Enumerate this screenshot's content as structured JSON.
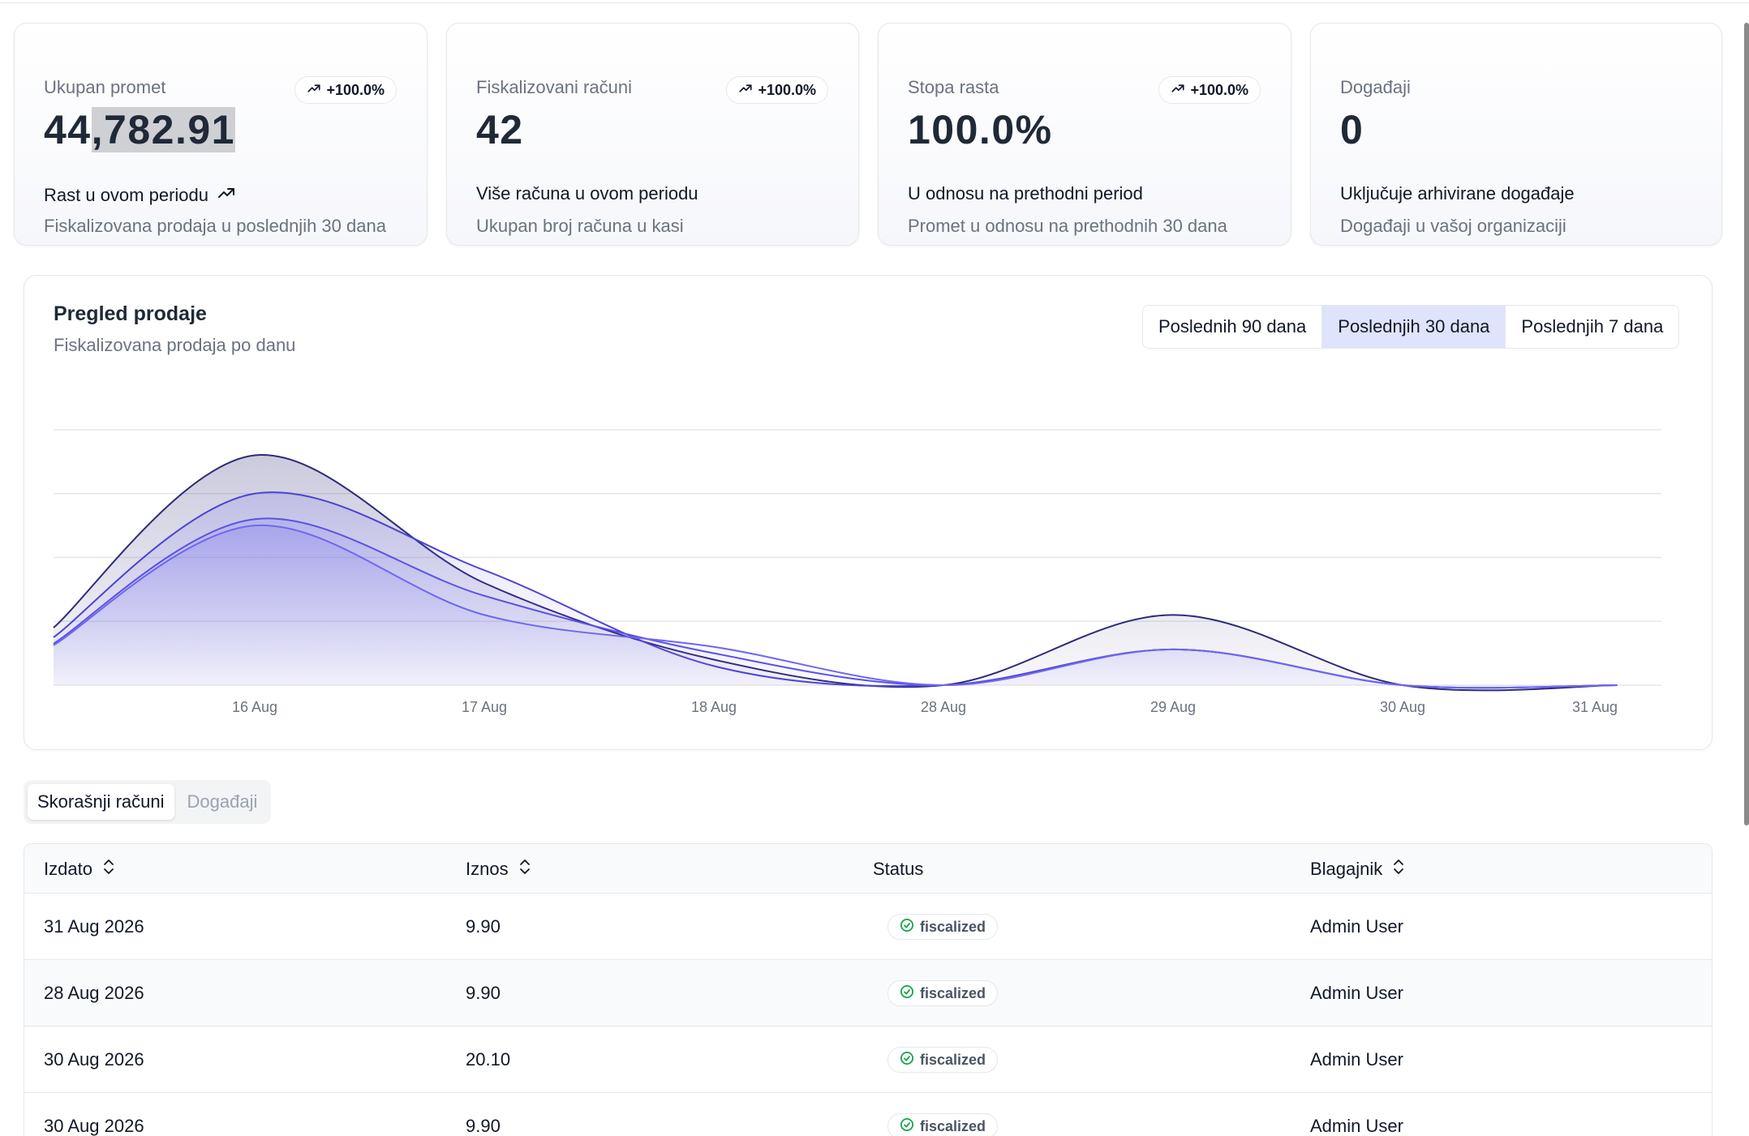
{
  "stats": [
    {
      "label": "Ukupan promet",
      "value": "44,782.91",
      "value_plain": "44",
      "value_highlight": ",782.91",
      "badge": "+100.0%",
      "footer_title": "Rast u ovom periodu",
      "footer_title_icon": "trending-up-icon",
      "footer_sub": "Fiskalizovana prodaja u poslednjih 30 dana"
    },
    {
      "label": "Fiskalizovani računi",
      "value": "42",
      "badge": "+100.0%",
      "footer_title": "Više računa u ovom periodu",
      "footer_sub": "Ukupan broj računa u kasi"
    },
    {
      "label": "Stopa rasta",
      "value": "100.0%",
      "badge": "+100.0%",
      "footer_title": "U odnosu na prethodni period",
      "footer_sub": "Promet u odnosu na prethodnih 30 dana"
    },
    {
      "label": "Događaji",
      "value": "0",
      "footer_title": "Uključuje arhivirane događaje",
      "footer_sub": "Događaji u vašoj organizaciji"
    }
  ],
  "chart_panel": {
    "title": "Pregled prodaje",
    "subtitle": "Fiskalizovana prodaja po danu",
    "ranges": [
      "Poslednih 90 dana",
      "Poslednjih 30 dana",
      "Poslednjih 7 dana"
    ],
    "active_range": "Poslednjih 30 dana"
  },
  "chart_data": {
    "type": "area",
    "title": "Pregled prodaje",
    "subtitle": "Fiskalizovana prodaja po danu",
    "xlabel": "",
    "ylabel": "",
    "categories": [
      "16 Aug",
      "17 Aug",
      "18 Aug",
      "28 Aug",
      "29 Aug",
      "30 Aug",
      "31 Aug"
    ],
    "series": [
      {
        "values": [
          180,
          80,
          20,
          0,
          55,
          0,
          0
        ],
        "color": "#2e2a78"
      },
      {
        "values": [
          150,
          90,
          15,
          0,
          28,
          0,
          0
        ],
        "color": "#4b43d6"
      },
      {
        "values": [
          130,
          70,
          25,
          0,
          28,
          0,
          0
        ],
        "color": "#5a52e8"
      },
      {
        "values": [
          125,
          55,
          30,
          0,
          28,
          0,
          0
        ],
        "color": "#6e67f0"
      }
    ],
    "ylim": [
      0,
      200
    ],
    "grid": true,
    "smooth": true,
    "stacked": false,
    "colors": {
      "accent": "#4f46e5",
      "dark": "#2e2a78"
    }
  },
  "tabs": [
    "Skorašnji računi",
    "Događaji"
  ],
  "active_tab": "Skorašnji računi",
  "table": {
    "headers": [
      "Izdato",
      "Iznos",
      "Status",
      "Blagajnik"
    ],
    "sortable": [
      true,
      true,
      false,
      true
    ],
    "rows": [
      {
        "issued": "31 Aug 2026",
        "amount": "9.90",
        "status": "fiscalized",
        "cashier": "Admin User"
      },
      {
        "issued": "28 Aug 2026",
        "amount": "9.90",
        "status": "fiscalized",
        "cashier": "Admin User"
      },
      {
        "issued": "30 Aug 2026",
        "amount": "20.10",
        "status": "fiscalized",
        "cashier": "Admin User"
      },
      {
        "issued": "30 Aug 2026",
        "amount": "9.90",
        "status": "fiscalized",
        "cashier": "Admin User"
      }
    ]
  },
  "colors": {
    "status_ok": "#16a34a",
    "active_range_bg": "#dfe3fb"
  }
}
